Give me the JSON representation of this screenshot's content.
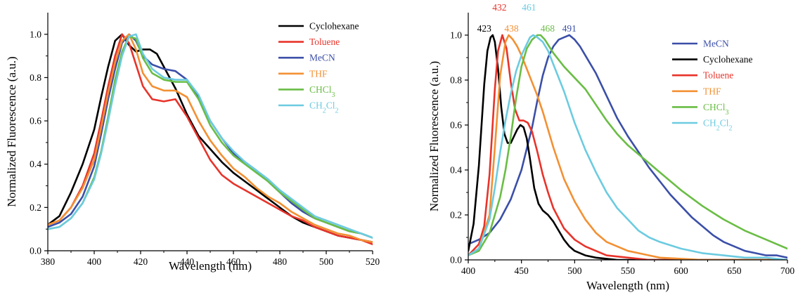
{
  "chart_data": [
    {
      "type": "line",
      "title": "",
      "xlabel": "Wavelength (nm)",
      "ylabel": "Normalized Fluorescence (a.u.)",
      "xlim": [
        380,
        520
      ],
      "ylim": [
        0.0,
        1.1
      ],
      "xticks": [
        380,
        400,
        420,
        440,
        460,
        480,
        500,
        520
      ],
      "yticks": [
        0.0,
        0.2,
        0.4,
        0.6,
        0.8,
        1.0
      ],
      "tick_labels_x": [
        "380",
        "400",
        "420",
        "440",
        "460",
        "480",
        "500",
        "520"
      ],
      "tick_labels_y": [
        "0.0",
        "0.2",
        "0.4",
        "0.6",
        "0.8",
        "1.0"
      ],
      "grid": false,
      "legend_position": "top-right",
      "series": [
        {
          "name": "Cyclohexane",
          "color": "#000000",
          "x": [
            380,
            385,
            390,
            395,
            400,
            403,
            406,
            409,
            412,
            415,
            418,
            421,
            424,
            427,
            430,
            435,
            440,
            445,
            450,
            455,
            460,
            465,
            470,
            475,
            480,
            485,
            490,
            495,
            500,
            505,
            510,
            515,
            520
          ],
          "y": [
            0.12,
            0.16,
            0.27,
            0.4,
            0.56,
            0.71,
            0.85,
            0.97,
            1.0,
            0.95,
            0.92,
            0.93,
            0.93,
            0.91,
            0.85,
            0.75,
            0.63,
            0.53,
            0.47,
            0.41,
            0.36,
            0.32,
            0.28,
            0.24,
            0.2,
            0.16,
            0.13,
            0.11,
            0.09,
            0.07,
            0.06,
            0.05,
            0.04
          ]
        },
        {
          "name": "Toluene",
          "color": "#e8332a",
          "x": [
            380,
            385,
            390,
            395,
            400,
            403,
            406,
            409,
            412,
            415,
            418,
            421,
            425,
            430,
            435,
            440,
            445,
            450,
            455,
            460,
            465,
            470,
            475,
            480,
            485,
            490,
            495,
            500,
            505,
            510,
            515,
            520
          ],
          "y": [
            0.12,
            0.14,
            0.2,
            0.3,
            0.45,
            0.6,
            0.76,
            0.9,
            1.0,
            0.96,
            0.86,
            0.76,
            0.7,
            0.69,
            0.7,
            0.62,
            0.52,
            0.42,
            0.35,
            0.31,
            0.28,
            0.25,
            0.22,
            0.19,
            0.16,
            0.14,
            0.11,
            0.09,
            0.07,
            0.06,
            0.05,
            0.03
          ]
        },
        {
          "name": "MeCN",
          "color": "#3b4fa8",
          "x": [
            380,
            385,
            390,
            395,
            400,
            403,
            406,
            409,
            412,
            415,
            418,
            421,
            425,
            430,
            435,
            440,
            445,
            450,
            455,
            460,
            465,
            470,
            475,
            480,
            485,
            490,
            495,
            500,
            505,
            510,
            515,
            520
          ],
          "y": [
            0.11,
            0.13,
            0.17,
            0.25,
            0.39,
            0.54,
            0.7,
            0.84,
            0.96,
            1.0,
            0.97,
            0.9,
            0.86,
            0.84,
            0.83,
            0.79,
            0.71,
            0.6,
            0.52,
            0.45,
            0.41,
            0.37,
            0.32,
            0.27,
            0.22,
            0.18,
            0.15,
            0.13,
            0.11,
            0.09,
            0.08,
            0.06
          ]
        },
        {
          "name": "THF",
          "color": "#f39033",
          "x": [
            380,
            385,
            390,
            395,
            400,
            403,
            406,
            409,
            412,
            415,
            418,
            421,
            425,
            430,
            435,
            440,
            445,
            450,
            455,
            460,
            465,
            470,
            475,
            480,
            485,
            490,
            495,
            500,
            505,
            510,
            515,
            520
          ],
          "y": [
            0.12,
            0.14,
            0.2,
            0.29,
            0.42,
            0.57,
            0.73,
            0.87,
            0.97,
            1.0,
            0.93,
            0.82,
            0.76,
            0.74,
            0.74,
            0.71,
            0.6,
            0.51,
            0.44,
            0.38,
            0.34,
            0.29,
            0.25,
            0.22,
            0.18,
            0.15,
            0.12,
            0.1,
            0.08,
            0.07,
            0.05,
            0.04
          ]
        },
        {
          "name": "CHCl3",
          "color": "#6abd45",
          "x": [
            380,
            385,
            390,
            395,
            400,
            403,
            406,
            409,
            412,
            415,
            418,
            421,
            425,
            430,
            435,
            440,
            445,
            450,
            455,
            460,
            465,
            470,
            475,
            480,
            485,
            490,
            495,
            500,
            505,
            510,
            515,
            520
          ],
          "y": [
            0.1,
            0.11,
            0.15,
            0.22,
            0.34,
            0.46,
            0.62,
            0.79,
            0.92,
            0.99,
            0.98,
            0.89,
            0.82,
            0.79,
            0.78,
            0.78,
            0.7,
            0.58,
            0.5,
            0.44,
            0.4,
            0.36,
            0.32,
            0.27,
            0.23,
            0.19,
            0.15,
            0.13,
            0.11,
            0.09,
            0.08,
            0.06
          ]
        },
        {
          "name": "CH2Cl2",
          "color": "#6ccbe0",
          "x": [
            380,
            385,
            390,
            395,
            400,
            403,
            406,
            409,
            412,
            415,
            418,
            421,
            425,
            430,
            435,
            440,
            445,
            450,
            455,
            460,
            465,
            470,
            475,
            480,
            485,
            490,
            495,
            500,
            505,
            510,
            515,
            520
          ],
          "y": [
            0.1,
            0.11,
            0.15,
            0.22,
            0.33,
            0.45,
            0.6,
            0.76,
            0.9,
            0.99,
            1.0,
            0.91,
            0.84,
            0.8,
            0.79,
            0.79,
            0.72,
            0.6,
            0.52,
            0.46,
            0.41,
            0.37,
            0.33,
            0.28,
            0.24,
            0.2,
            0.16,
            0.14,
            0.12,
            0.1,
            0.08,
            0.06
          ]
        }
      ]
    },
    {
      "type": "line",
      "title": "",
      "xlabel": "Wavelength (nm)",
      "ylabel": "Normalized Fluorescence (a.u.)",
      "xlim": [
        400,
        700
      ],
      "ylim": [
        0.0,
        1.1
      ],
      "xticks": [
        400,
        450,
        500,
        550,
        600,
        650,
        700
      ],
      "yticks": [
        0.0,
        0.2,
        0.4,
        0.6,
        0.8,
        1.0
      ],
      "tick_labels_x": [
        "400",
        "450",
        "500",
        "550",
        "600",
        "650",
        "700"
      ],
      "tick_labels_y": [
        "0.0",
        "0.2",
        "0.4",
        "0.6",
        "0.8",
        "1.0"
      ],
      "grid": false,
      "legend_position": "top-right",
      "annotations": [
        {
          "text": "423",
          "x": 423,
          "y": 1.0,
          "color": "#000000"
        },
        {
          "text": "432",
          "x": 432,
          "y": 1.0,
          "color": "#e8332a"
        },
        {
          "text": "438",
          "x": 438,
          "y": 1.0,
          "color": "#f39033"
        },
        {
          "text": "461",
          "x": 461,
          "y": 1.0,
          "color": "#6ccbe0"
        },
        {
          "text": "468",
          "x": 468,
          "y": 1.0,
          "color": "#6abd45"
        },
        {
          "text": "491",
          "x": 491,
          "y": 1.0,
          "color": "#3b4fa8"
        }
      ],
      "series": [
        {
          "name": "MeCN",
          "color": "#3b4fa8",
          "x": [
            400,
            410,
            420,
            430,
            440,
            450,
            460,
            465,
            470,
            475,
            480,
            485,
            490,
            495,
            500,
            505,
            510,
            520,
            530,
            540,
            550,
            560,
            570,
            580,
            590,
            600,
            610,
            620,
            630,
            640,
            650,
            660,
            670,
            680,
            690,
            700
          ],
          "y": [
            0.07,
            0.09,
            0.12,
            0.18,
            0.27,
            0.4,
            0.59,
            0.71,
            0.82,
            0.9,
            0.95,
            0.98,
            0.99,
            1.0,
            0.98,
            0.95,
            0.91,
            0.83,
            0.73,
            0.63,
            0.55,
            0.48,
            0.41,
            0.35,
            0.29,
            0.24,
            0.19,
            0.15,
            0.11,
            0.08,
            0.06,
            0.04,
            0.03,
            0.02,
            0.02,
            0.01
          ]
        },
        {
          "name": "Cyclohexane",
          "color": "#000000",
          "x": [
            400,
            405,
            410,
            415,
            418,
            421,
            423,
            425,
            428,
            431,
            434,
            437,
            440,
            443,
            446,
            449,
            452,
            455,
            458,
            462,
            466,
            470,
            475,
            480,
            485,
            490,
            495,
            500,
            510,
            520,
            530,
            540,
            550,
            560,
            580,
            700
          ],
          "y": [
            0.04,
            0.16,
            0.42,
            0.78,
            0.93,
            0.99,
            1.0,
            0.97,
            0.85,
            0.68,
            0.56,
            0.52,
            0.52,
            0.55,
            0.58,
            0.6,
            0.59,
            0.54,
            0.45,
            0.32,
            0.25,
            0.22,
            0.2,
            0.17,
            0.13,
            0.09,
            0.06,
            0.04,
            0.02,
            0.01,
            0.005,
            0.0,
            0.0,
            0.0,
            0.0,
            0.0
          ]
        },
        {
          "name": "Toluene",
          "color": "#e8332a",
          "x": [
            400,
            410,
            415,
            420,
            425,
            428,
            432,
            436,
            440,
            444,
            448,
            452,
            456,
            460,
            465,
            470,
            475,
            480,
            490,
            500,
            510,
            520,
            530,
            540,
            550,
            560,
            570,
            580,
            600,
            620,
            650,
            700
          ],
          "y": [
            0.02,
            0.07,
            0.15,
            0.38,
            0.76,
            0.93,
            1.0,
            0.94,
            0.79,
            0.67,
            0.62,
            0.62,
            0.61,
            0.57,
            0.48,
            0.38,
            0.3,
            0.23,
            0.14,
            0.09,
            0.06,
            0.04,
            0.02,
            0.015,
            0.01,
            0.005,
            0.0,
            0.0,
            0.0,
            0.0,
            0.0,
            0.0
          ]
        },
        {
          "name": "THF",
          "color": "#f39033",
          "x": [
            400,
            410,
            420,
            425,
            430,
            435,
            438,
            442,
            446,
            450,
            455,
            460,
            465,
            470,
            475,
            480,
            490,
            500,
            510,
            520,
            530,
            540,
            550,
            560,
            570,
            580,
            600,
            620,
            650,
            700
          ],
          "y": [
            0.02,
            0.05,
            0.2,
            0.5,
            0.82,
            0.97,
            1.0,
            0.98,
            0.95,
            0.91,
            0.85,
            0.79,
            0.73,
            0.66,
            0.58,
            0.5,
            0.36,
            0.26,
            0.18,
            0.12,
            0.08,
            0.06,
            0.04,
            0.03,
            0.02,
            0.01,
            0.005,
            0.0,
            0.0,
            0.0
          ]
        },
        {
          "name": "CHCl3",
          "color": "#6abd45",
          "x": [
            400,
            410,
            420,
            425,
            430,
            435,
            440,
            445,
            450,
            455,
            460,
            465,
            468,
            472,
            476,
            480,
            490,
            500,
            510,
            520,
            530,
            540,
            550,
            560,
            570,
            580,
            590,
            600,
            620,
            640,
            660,
            680,
            700
          ],
          "y": [
            0.02,
            0.04,
            0.12,
            0.2,
            0.28,
            0.4,
            0.55,
            0.72,
            0.86,
            0.94,
            0.98,
            1.0,
            1.0,
            0.98,
            0.95,
            0.92,
            0.86,
            0.81,
            0.76,
            0.69,
            0.62,
            0.56,
            0.51,
            0.47,
            0.43,
            0.39,
            0.35,
            0.31,
            0.24,
            0.18,
            0.13,
            0.09,
            0.05
          ]
        },
        {
          "name": "CH2Cl2",
          "color": "#6ccbe0",
          "x": [
            400,
            410,
            420,
            425,
            430,
            435,
            440,
            445,
            450,
            455,
            458,
            461,
            465,
            470,
            475,
            480,
            490,
            500,
            510,
            520,
            530,
            540,
            550,
            560,
            570,
            580,
            600,
            620,
            640,
            660,
            680,
            700
          ],
          "y": [
            0.02,
            0.05,
            0.18,
            0.32,
            0.48,
            0.62,
            0.74,
            0.84,
            0.91,
            0.96,
            0.99,
            1.0,
            0.99,
            0.97,
            0.93,
            0.87,
            0.75,
            0.61,
            0.49,
            0.39,
            0.3,
            0.23,
            0.18,
            0.13,
            0.1,
            0.08,
            0.05,
            0.03,
            0.02,
            0.01,
            0.01,
            0.0
          ]
        }
      ]
    }
  ]
}
